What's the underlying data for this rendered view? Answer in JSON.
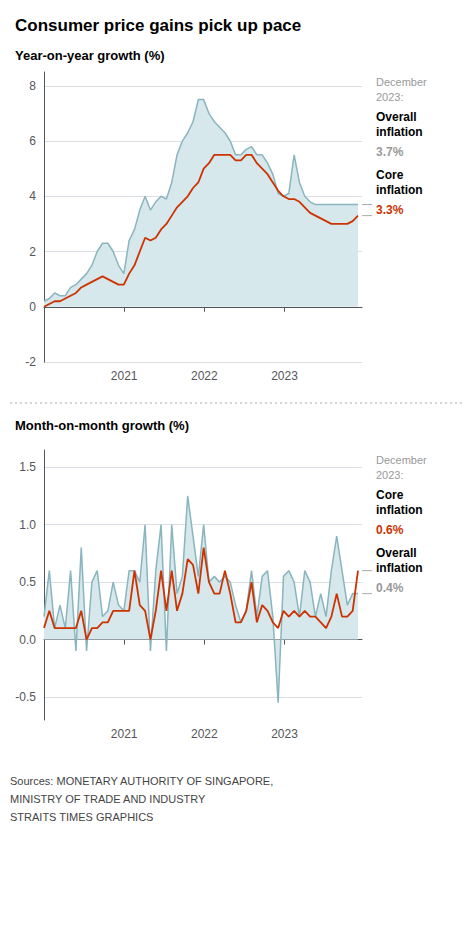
{
  "chart_data": [
    {
      "type": "line",
      "title": "Consumer price gains pick up pace",
      "subtitle": "Year-on-year growth (%)",
      "x": [
        2020.0,
        2020.0664,
        2020.1328,
        2020.1992,
        2020.2656,
        2020.3319,
        2020.3983,
        2020.4647,
        2020.5311,
        2020.5975,
        2020.6639,
        2020.7303,
        2020.7967,
        2020.8631,
        2020.9295,
        2020.9958,
        2021.0622,
        2021.1286,
        2021.195,
        2021.2614,
        2021.3278,
        2021.3942,
        2021.4606,
        2021.527,
        2021.5934,
        2021.6597,
        2021.7261,
        2021.7925,
        2021.8589,
        2021.9253,
        2021.9917,
        2022.0581,
        2022.1245,
        2022.1909,
        2022.2573,
        2022.3236,
        2022.39,
        2022.4564,
        2022.5228,
        2022.5892,
        2022.6556,
        2022.722,
        2022.7884,
        2022.8548,
        2022.9212,
        2022.9875,
        2023.0539,
        2023.1203,
        2023.1867,
        2023.2531,
        2023.3195,
        2023.3859,
        2023.4523,
        2023.5187,
        2023.5851,
        2023.6514,
        2023.7178,
        2023.7842,
        2023.8506,
        2023.917
      ],
      "series": [
        {
          "type": "area",
          "color": "#8ab4be",
          "fill_color": "#d6e8ec",
          "values": [
            0.2,
            0.3,
            0.5,
            0.4,
            0.4,
            0.7,
            0.8,
            1.0,
            1.2,
            1.5,
            2.0,
            2.3,
            2.3,
            2.0,
            1.5,
            1.2,
            2.4,
            2.8,
            3.5,
            4.0,
            3.5,
            3.8,
            4.0,
            3.9,
            4.5,
            5.5,
            6.0,
            6.3,
            6.7,
            7.5,
            7.5,
            7.0,
            6.7,
            6.5,
            6.3,
            6.0,
            5.5,
            5.5,
            5.7,
            5.8,
            5.5,
            5.5,
            5.2,
            4.8,
            4.1,
            4.0,
            4.1,
            5.5,
            4.5,
            4.0,
            3.8,
            3.7,
            3.7,
            3.7,
            3.7,
            3.7,
            3.7,
            3.7,
            3.7,
            3.7
          ]
        },
        {
          "type": "line",
          "color": "#cc3300",
          "values": [
            0.0,
            0.1,
            0.2,
            0.2,
            0.3,
            0.4,
            0.5,
            0.7,
            0.8,
            0.9,
            1.0,
            1.1,
            1.0,
            0.9,
            0.8,
            0.8,
            1.2,
            1.5,
            2.0,
            2.5,
            2.4,
            2.5,
            2.8,
            3.0,
            3.3,
            3.6,
            3.8,
            4.0,
            4.3,
            4.5,
            5.0,
            5.2,
            5.5,
            5.5,
            5.5,
            5.5,
            5.3,
            5.3,
            5.5,
            5.5,
            5.2,
            5.0,
            4.8,
            4.5,
            4.2,
            4.0,
            3.9,
            3.9,
            3.8,
            3.6,
            3.4,
            3.3,
            3.2,
            3.1,
            3.0,
            3.0,
            3.0,
            3.0,
            3.1,
            3.3
          ]
        }
      ],
      "xlim": [
        2020.0,
        2023.967
      ],
      "xticks": [
        2021,
        2022,
        2023
      ],
      "ylim": [
        -2.0,
        8.5
      ],
      "yticks": [
        -2,
        0,
        2,
        4,
        6,
        8
      ],
      "grid": "y",
      "annotations": [
        {
          "text": "December\n2023:",
          "color": "#999999"
        },
        {
          "text": "Overall\ninflation",
          "color": "#000000"
        },
        {
          "text": "3.7%",
          "value": 3.7,
          "color": "#999999"
        },
        {
          "text": "Core\ninflation",
          "color": "#000000"
        },
        {
          "text": "3.3%",
          "value": 3.3,
          "color": "#cc3300"
        }
      ]
    },
    {
      "type": "line",
      "subtitle": "Month-on-month growth (%)",
      "x": [
        2020.0,
        2020.0664,
        2020.1328,
        2020.1992,
        2020.2656,
        2020.3319,
        2020.3983,
        2020.4647,
        2020.5311,
        2020.5975,
        2020.6639,
        2020.7303,
        2020.7967,
        2020.8631,
        2020.9295,
        2020.9958,
        2021.0622,
        2021.1286,
        2021.195,
        2021.2614,
        2021.3278,
        2021.3942,
        2021.4606,
        2021.527,
        2021.5934,
        2021.6597,
        2021.7261,
        2021.7925,
        2021.8589,
        2021.9253,
        2021.9917,
        2022.0581,
        2022.1245,
        2022.1909,
        2022.2573,
        2022.3236,
        2022.39,
        2022.4564,
        2022.5228,
        2022.5892,
        2022.6556,
        2022.722,
        2022.7884,
        2022.8548,
        2022.9212,
        2022.9875,
        2023.0539,
        2023.1203,
        2023.1867,
        2023.2531,
        2023.3195,
        2023.3859,
        2023.4523,
        2023.5187,
        2023.5851,
        2023.6514,
        2023.7178,
        2023.7842,
        2023.8506,
        2023.917
      ],
      "series": [
        {
          "type": "area",
          "color": "#8ab4be",
          "fill_color": "#d6e8ec",
          "values": [
            0.2,
            0.6,
            0.1,
            0.3,
            0.1,
            0.6,
            -0.1,
            0.8,
            -0.1,
            0.5,
            0.6,
            0.2,
            0.25,
            0.5,
            0.3,
            0.25,
            0.6,
            0.6,
            0.5,
            1.0,
            -0.1,
            0.6,
            1.0,
            -0.1,
            1.0,
            0.4,
            0.55,
            1.25,
            0.9,
            0.55,
            1.0,
            0.5,
            0.55,
            0.5,
            0.55,
            0.5,
            0.3,
            0.15,
            0.25,
            0.6,
            0.2,
            0.55,
            0.6,
            0.2,
            -0.55,
            0.55,
            0.6,
            0.5,
            0.2,
            0.6,
            0.5,
            0.2,
            0.4,
            0.2,
            0.6,
            0.9,
            0.6,
            0.3,
            0.4,
            0.4
          ]
        },
        {
          "type": "line",
          "color": "#cc3300",
          "values": [
            0.1,
            0.25,
            0.1,
            0.1,
            0.1,
            0.1,
            0.1,
            0.25,
            0.0,
            0.1,
            0.1,
            0.15,
            0.15,
            0.25,
            0.25,
            0.25,
            0.25,
            0.6,
            0.3,
            0.25,
            0.0,
            0.25,
            0.6,
            0.25,
            0.6,
            0.25,
            0.4,
            0.7,
            0.65,
            0.4,
            0.8,
            0.5,
            0.4,
            0.4,
            0.6,
            0.4,
            0.15,
            0.15,
            0.25,
            0.5,
            0.15,
            0.3,
            0.25,
            0.15,
            0.1,
            0.25,
            0.2,
            0.25,
            0.2,
            0.25,
            0.2,
            0.2,
            0.15,
            0.1,
            0.2,
            0.4,
            0.2,
            0.2,
            0.25,
            0.6
          ]
        }
      ],
      "xlim": [
        2020.0,
        2023.967
      ],
      "xticks": [
        2021,
        2022,
        2023
      ],
      "ylim": [
        -0.7,
        1.65
      ],
      "yticks": [
        -0.5,
        {
          "value": 0,
          "label": "0.0"
        },
        0.5,
        {
          "value": 1.0,
          "label": "1.0"
        },
        1.5
      ],
      "grid": "y",
      "annotations": [
        {
          "text": "December\n2023:",
          "color": "#999999"
        },
        {
          "text": "Core\ninflation",
          "color": "#000000"
        },
        {
          "text": "0.6%",
          "value": 0.6,
          "color": "#cc3300"
        },
        {
          "text": "Overall\ninflation",
          "color": "#000000"
        },
        {
          "text": "0.4%",
          "value": 0.4,
          "color": "#999999"
        }
      ],
      "source": "Sources: MONETARY AUTHORITY OF SINGAPORE,\nMINISTRY OF TRADE AND INDUSTRY\nSTRAITS TIMES GRAPHICS"
    }
  ]
}
